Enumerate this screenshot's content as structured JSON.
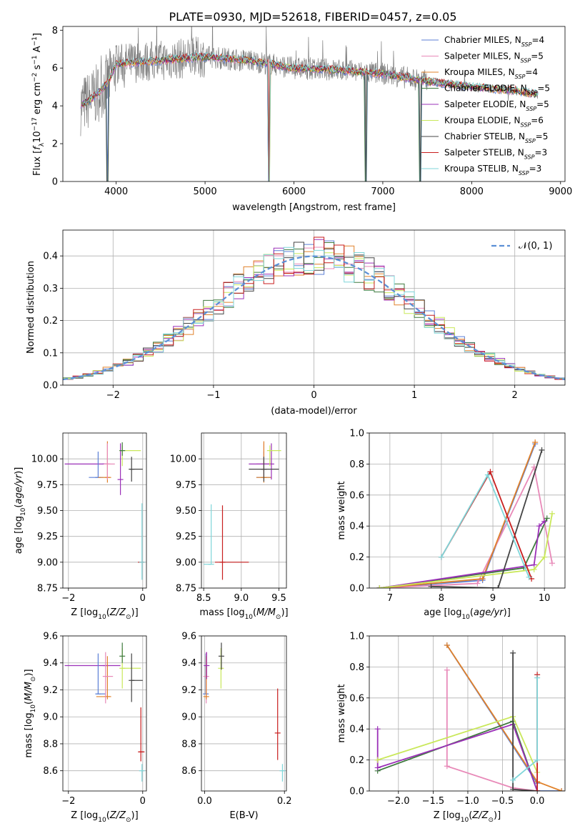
{
  "figure": {
    "title": "PLATE=0930, MJD=52618, FIBERID=0457, z=0.05"
  },
  "colors": {
    "chabrier_miles": "#5b7fd6",
    "salpeter_miles": "#e889b8",
    "kroupa_miles": "#e0812a",
    "chabrier_elodie": "#3f7a3f",
    "salpeter_elodie": "#9b30b8",
    "kroupa_elodie": "#c9e85a",
    "chabrier_stelib": "#444444",
    "salpeter_stelib": "#c81e1e",
    "kroupa_stelib": "#7fd6d9",
    "data": "#7f7f7f",
    "normal_curve": "#5b8fd6"
  },
  "chart_data": [
    {
      "id": "spectrum",
      "type": "line",
      "xlabel": "wavelength [Angstrom, rest frame]",
      "ylabel": "Flux [f_λ10^-17 erg cm^-2 s^-1 A^-1]",
      "xlim": [
        3400,
        9050
      ],
      "ylim": [
        0,
        8.2
      ],
      "xticks": [
        4000,
        5000,
        6000,
        7000,
        8000,
        9000
      ],
      "yticks": [
        0,
        2,
        4,
        6,
        8
      ],
      "grid": false,
      "legend": "upper-right",
      "series": [
        {
          "name": "Chabrier MILES, N_SSP=4",
          "color_key": "chabrier_miles"
        },
        {
          "name": "Salpeter MILES, N_SSP=5",
          "color_key": "salpeter_miles"
        },
        {
          "name": "Kroupa MILES, N_SSP=4",
          "color_key": "kroupa_miles"
        },
        {
          "name": "Chabrier ELODIE, N_SSP=5",
          "color_key": "chabrier_elodie"
        },
        {
          "name": "Salpeter ELODIE, N_SSP=5",
          "color_key": "salpeter_elodie"
        },
        {
          "name": "Kroupa ELODIE, N_SSP=6",
          "color_key": "kroupa_elodie"
        },
        {
          "name": "Chabrier STELIB, N_SSP=5",
          "color_key": "chabrier_stelib"
        },
        {
          "name": "Salpeter STELIB, N_SSP=3",
          "color_key": "salpeter_stelib"
        },
        {
          "name": "Kroupa STELIB, N_SSP=3",
          "color_key": "kroupa_stelib"
        }
      ],
      "continuum": {
        "x": [
          3600,
          3700,
          3800,
          3900,
          4000,
          4200,
          4500,
          5000,
          5500,
          6000,
          6500,
          7000,
          7500,
          8000,
          8500,
          8750
        ],
        "y": [
          4.0,
          4.3,
          4.7,
          5.2,
          6.2,
          6.3,
          6.4,
          6.6,
          6.4,
          6.0,
          5.9,
          5.7,
          5.3,
          5.0,
          4.8,
          4.6
        ]
      },
      "dips": [
        {
          "x": 3900,
          "y": 0
        },
        {
          "x": 5720,
          "y": 0
        },
        {
          "x": 6810,
          "y": 0
        },
        {
          "x": 7420,
          "y": 0
        }
      ]
    },
    {
      "id": "residuals",
      "type": "histogram",
      "xlabel": "(data-model)/error",
      "ylabel": "Normed distribution",
      "xlim": [
        -2.5,
        2.5
      ],
      "ylim": [
        0,
        0.48
      ],
      "xticks": [
        -2,
        -1,
        0,
        1,
        2
      ],
      "yticks": [
        0.0,
        0.1,
        0.2,
        0.3,
        0.4
      ],
      "grid": true,
      "legend": "upper-right",
      "legend_label": "𝒩(0, 1)",
      "bin_width": 0.1
    },
    {
      "id": "age_vs_Z",
      "type": "errorbar",
      "xlabel": "Z [log10(Z/Z⊙)]",
      "ylabel": "age  [log10(age/yr)]",
      "xlim": [
        -2.15,
        0.1
      ],
      "ylim": [
        8.75,
        10.25
      ],
      "xticks": [
        -2,
        0
      ],
      "yticks": [
        8.75,
        9.0,
        9.25,
        9.5,
        9.75,
        10.0
      ],
      "grid": true,
      "points": [
        {
          "c": "salpeter_elodie",
          "x": -1.0,
          "xerr": [
            1.1,
            0.0
          ],
          "y": 9.95,
          "yerr": [
            0.0,
            0.0
          ]
        },
        {
          "c": "chabrier_miles",
          "x": -1.2,
          "xerr": [
            0.25,
            0.15
          ],
          "y": 9.82,
          "yerr": [
            0.0,
            0.25
          ]
        },
        {
          "c": "kroupa_miles",
          "x": -0.95,
          "xerr": [
            0.25,
            0.1
          ],
          "y": 9.82,
          "yerr": [
            0.05,
            0.35
          ]
        },
        {
          "c": "salpeter_miles",
          "x": -0.95,
          "xerr": [
            0.1,
            0.2
          ],
          "y": 9.95,
          "yerr": [
            0.15,
            0.2
          ]
        },
        {
          "c": "salpeter_elodie",
          "x": -0.6,
          "xerr": [
            0.0,
            0.0
          ],
          "y": 9.8,
          "yerr": [
            0.15,
            0.35
          ]
        },
        {
          "c": "kroupa_elodie",
          "x": -0.55,
          "xerr": [
            0.0,
            0.5
          ],
          "y": 10.08,
          "yerr": [
            0.15,
            0.05
          ]
        },
        {
          "c": "chabrier_elodie",
          "x": -0.55,
          "xerr": [
            0.05,
            0.0
          ],
          "y": 10.08,
          "yerr": [
            0.05,
            0.08
          ]
        },
        {
          "c": "chabrier_stelib",
          "x": -0.3,
          "xerr": [
            0.05,
            0.3
          ],
          "y": 9.9,
          "yerr": [
            0.12,
            0.12
          ]
        },
        {
          "c": "salpeter_stelib",
          "x": -0.05,
          "xerr": [
            0.05,
            0.1
          ],
          "y": 9.0,
          "yerr": [
            0.0,
            0.0
          ]
        },
        {
          "c": "kroupa_stelib",
          "x": -0.02,
          "xerr": [
            0.0,
            0.0
          ],
          "y": 9.0,
          "yerr": [
            0.17,
            0.57
          ]
        }
      ]
    },
    {
      "id": "age_vs_mass",
      "type": "errorbar",
      "xlabel": "mass [log10(M/M⊙)]",
      "ylabel": "",
      "xlim": [
        8.47,
        9.6
      ],
      "ylim": [
        8.75,
        10.25
      ],
      "xticks": [
        8.5,
        9.0,
        9.5
      ],
      "yticks": [
        8.75,
        9.0,
        9.25,
        9.5,
        9.75,
        10.0
      ],
      "grid": true,
      "points": [
        {
          "c": "chabrier_miles",
          "x": 9.3,
          "xerr": [
            0.1,
            0.1
          ],
          "y": 9.82,
          "yerr": [
            0.0,
            0.25
          ]
        },
        {
          "c": "salpeter_miles",
          "x": 9.3,
          "xerr": [
            0.1,
            0.1
          ],
          "y": 9.95,
          "yerr": [
            0.15,
            0.2
          ]
        },
        {
          "c": "kroupa_miles",
          "x": 9.3,
          "xerr": [
            0.1,
            0.1
          ],
          "y": 9.82,
          "yerr": [
            0.05,
            0.35
          ]
        },
        {
          "c": "salpeter_elodie",
          "x": 9.4,
          "xerr": [
            0.3,
            0.0
          ],
          "y": 9.95,
          "yerr": [
            0.15,
            0.2
          ]
        },
        {
          "c": "kroupa_elodie",
          "x": 9.38,
          "xerr": [
            0.0,
            0.15
          ],
          "y": 10.08,
          "yerr": [
            0.15,
            0.05
          ]
        },
        {
          "c": "chabrier_stelib",
          "x": 9.3,
          "xerr": [
            0.2,
            0.2
          ],
          "y": 9.9,
          "yerr": [
            0.12,
            0.12
          ]
        },
        {
          "c": "salpeter_stelib",
          "x": 8.75,
          "xerr": [
            0.1,
            0.35
          ],
          "y": 9.0,
          "yerr": [
            0.17,
            0.55
          ]
        },
        {
          "c": "kroupa_stelib",
          "x": 8.6,
          "xerr": [
            0.1,
            0.0
          ],
          "y": 8.98,
          "yerr": [
            0.0,
            0.58
          ]
        }
      ]
    },
    {
      "id": "mass_weight_vs_age",
      "type": "line",
      "xlabel": "age  [log10(age/yr)]",
      "ylabel": "mass weight",
      "xlim": [
        6.6,
        10.4
      ],
      "ylim": [
        0,
        1.0
      ],
      "xticks": [
        7,
        8,
        9,
        10
      ],
      "yticks": [
        0.0,
        0.2,
        0.4,
        0.6,
        0.8,
        1.0
      ],
      "grid": true,
      "series": [
        {
          "c": "chabrier_miles",
          "x": [
            6.8,
            8.8,
            9.82
          ],
          "y": [
            0.0,
            0.05,
            0.93
          ]
        },
        {
          "c": "salpeter_miles",
          "x": [
            6.8,
            8.7,
            9.8,
            10.15
          ],
          "y": [
            0.0,
            0.03,
            0.78,
            0.16
          ]
        },
        {
          "c": "kroupa_miles",
          "x": [
            6.8,
            8.8,
            9.82
          ],
          "y": [
            0.0,
            0.06,
            0.94
          ]
        },
        {
          "c": "chabrier_elodie",
          "x": [
            6.8,
            9.6,
            10.05
          ],
          "y": [
            0.0,
            0.13,
            0.45
          ]
        },
        {
          "c": "salpeter_elodie",
          "x": [
            6.8,
            9.8,
            9.9,
            10.0
          ],
          "y": [
            0.0,
            0.15,
            0.4,
            0.43
          ]
        },
        {
          "c": "kroupa_elodie",
          "x": [
            6.8,
            9.8,
            10.0,
            10.15
          ],
          "y": [
            0.0,
            0.12,
            0.2,
            0.48
          ]
        },
        {
          "c": "chabrier_stelib",
          "x": [
            7.8,
            9.1,
            9.95
          ],
          "y": [
            0.01,
            0.0,
            0.89
          ]
        },
        {
          "c": "salpeter_stelib",
          "x": [
            8.0,
            8.95,
            9.75
          ],
          "y": [
            0.2,
            0.75,
            0.06
          ]
        },
        {
          "c": "kroupa_stelib",
          "x": [
            8.0,
            8.9,
            9.7
          ],
          "y": [
            0.2,
            0.73,
            0.07
          ]
        }
      ]
    },
    {
      "id": "mass_vs_Z",
      "type": "errorbar",
      "xlabel": "Z [log10(Z/Z⊙)]",
      "ylabel": "mass [log10(M/M⊙)]",
      "xlim": [
        -2.15,
        0.1
      ],
      "ylim": [
        8.45,
        9.6
      ],
      "xticks": [
        -2,
        0
      ],
      "yticks": [
        8.6,
        8.8,
        9.0,
        9.2,
        9.4,
        9.6
      ],
      "grid": true,
      "points": [
        {
          "c": "salpeter_elodie",
          "x": -1.0,
          "xerr": [
            1.1,
            0.4
          ],
          "y": 9.38,
          "yerr": [
            0.0,
            0.0
          ]
        },
        {
          "c": "chabrier_miles",
          "x": -1.2,
          "xerr": [
            0.05,
            0.2
          ],
          "y": 9.17,
          "yerr": [
            0.0,
            0.3
          ]
        },
        {
          "c": "kroupa_miles",
          "x": -0.95,
          "xerr": [
            0.3,
            0.1
          ],
          "y": 9.15,
          "yerr": [
            0.02,
            0.3
          ]
        },
        {
          "c": "salpeter_miles",
          "x": -1.0,
          "xerr": [
            0.0,
            0.2
          ],
          "y": 9.3,
          "yerr": [
            0.2,
            0.18
          ]
        },
        {
          "c": "kroupa_elodie",
          "x": -0.55,
          "xerr": [
            0.0,
            0.5
          ],
          "y": 9.36,
          "yerr": [
            0.15,
            0.15
          ]
        },
        {
          "c": "chabrier_elodie",
          "x": -0.55,
          "xerr": [
            0.0,
            0.0
          ],
          "y": 9.45,
          "yerr": [
            0.05,
            0.1
          ]
        },
        {
          "c": "chabrier_stelib",
          "x": -0.3,
          "xerr": [
            0.0,
            0.3
          ],
          "y": 9.27,
          "yerr": [
            0.16,
            0.2
          ]
        },
        {
          "c": "salpeter_stelib",
          "x": -0.05,
          "xerr": [
            0.05,
            0.1
          ],
          "y": 8.74,
          "yerr": [
            0.07,
            0.33
          ]
        },
        {
          "c": "kroupa_stelib",
          "x": -0.02,
          "xerr": [
            0.0,
            0.0
          ],
          "y": 8.6,
          "yerr": [
            0.08,
            0.05
          ]
        }
      ]
    },
    {
      "id": "mass_vs_ebv",
      "type": "errorbar",
      "xlabel": "E(B-V)",
      "ylabel": "",
      "xlim": [
        -0.008,
        0.205
      ],
      "ylim": [
        8.45,
        9.6
      ],
      "xticks": [
        0.0,
        0.2
      ],
      "yticks": [
        8.6,
        8.8,
        9.0,
        9.2,
        9.4,
        9.6
      ],
      "grid": true,
      "points": [
        {
          "c": "chabrier_miles",
          "x": 0.003,
          "yerr": [
            0.0,
            0.3
          ],
          "y": 9.17
        },
        {
          "c": "salpeter_miles",
          "x": 0.004,
          "yerr": [
            0.2,
            0.18
          ],
          "y": 9.3
        },
        {
          "c": "kroupa_miles",
          "x": 0.004,
          "yerr": [
            0.02,
            0.3
          ],
          "y": 9.15
        },
        {
          "c": "salpeter_elodie",
          "x": 0.005,
          "yerr": [
            0.1,
            0.1
          ],
          "y": 9.38
        },
        {
          "c": "kroupa_elodie",
          "x": 0.041,
          "yerr": [
            0.15,
            0.15
          ],
          "y": 9.36
        },
        {
          "c": "chabrier_stelib",
          "x": 0.042,
          "yerr": [
            0.1,
            0.1
          ],
          "y": 9.45
        },
        {
          "c": "salpeter_stelib",
          "x": 0.183,
          "yerr": [
            0.2,
            0.33
          ],
          "y": 8.88
        },
        {
          "c": "kroupa_stelib",
          "x": 0.195,
          "yerr": [
            0.08,
            0.05
          ],
          "y": 8.6
        }
      ]
    },
    {
      "id": "mass_weight_vs_Z",
      "type": "line",
      "xlabel": "Z [log10(Z/Z⊙)]",
      "ylabel": "mass weight",
      "xlim": [
        -2.42,
        0.4
      ],
      "ylim": [
        0,
        1.0
      ],
      "xticks": [
        -2.0,
        -1.5,
        -1.0,
        -0.5,
        0.0
      ],
      "yticks": [
        0.0,
        0.2,
        0.4,
        0.6,
        0.8,
        1.0
      ],
      "grid": true,
      "series": [
        {
          "c": "chabrier_miles",
          "x": [
            -1.3,
            0.0,
            0.0,
            0.35
          ],
          "y": [
            0.94,
            0.05,
            0.0,
            0.0
          ]
        },
        {
          "c": "salpeter_miles",
          "x": [
            -1.3,
            -1.3,
            -0.35,
            0.0
          ],
          "y": [
            0.78,
            0.16,
            0.02,
            0.0
          ]
        },
        {
          "c": "kroupa_miles",
          "x": [
            -1.3,
            0.0,
            0.35
          ],
          "y": [
            0.94,
            0.06,
            0.0
          ]
        },
        {
          "c": "chabrier_elodie",
          "x": [
            -2.3,
            -0.35,
            0.0
          ],
          "y": [
            0.13,
            0.45,
            0.0
          ]
        },
        {
          "c": "salpeter_elodie",
          "x": [
            -2.3,
            -2.3,
            -0.35,
            0.0
          ],
          "y": [
            0.4,
            0.15,
            0.43,
            0.0
          ]
        },
        {
          "c": "kroupa_elodie",
          "x": [
            -2.3,
            -0.35,
            0.0
          ],
          "y": [
            0.2,
            0.48,
            0.12
          ]
        },
        {
          "c": "chabrier_stelib",
          "x": [
            -0.35,
            -0.35,
            0.0
          ],
          "y": [
            0.89,
            0.01,
            0.0
          ]
        },
        {
          "c": "salpeter_stelib",
          "x": [
            0.0,
            0.0
          ],
          "y": [
            0.75,
            0.0
          ]
        },
        {
          "c": "kroupa_stelib",
          "x": [
            -0.35,
            0.0,
            0.0
          ],
          "y": [
            0.07,
            0.2,
            0.73
          ]
        }
      ]
    }
  ]
}
